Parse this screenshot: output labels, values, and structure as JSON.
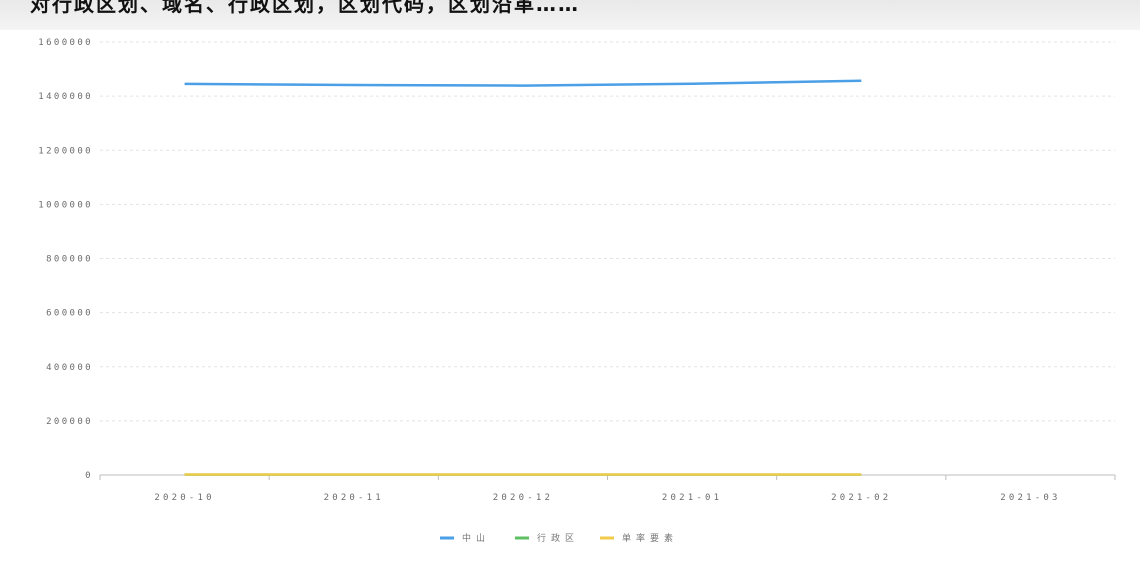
{
  "header": {
    "text": "对行政区划、域名、行政区划，区划代码，区划沿革……"
  },
  "chart_data": {
    "type": "line",
    "categories": [
      "2020-10",
      "2020-11",
      "2020-12",
      "2021-01",
      "2021-02",
      "2021-03"
    ],
    "ylim": [
      0,
      1600000
    ],
    "yticks": [
      0,
      200000,
      400000,
      600000,
      800000,
      1000000,
      1200000,
      1400000,
      1600000
    ],
    "grid": true,
    "legend_position": "bottom-center",
    "series": [
      {
        "name": "中山",
        "color": "#4a9fe6",
        "values": [
          1445000,
          1441000,
          1439000,
          1446000,
          1457000,
          null
        ]
      },
      {
        "name": "行政区",
        "color": "#5ec063",
        "values": [
          1500,
          1500,
          1500,
          1500,
          1500,
          null
        ]
      },
      {
        "name": "单率要素",
        "color": "#f1cb4c",
        "values": [
          2000,
          2000,
          2000,
          2000,
          2000,
          null
        ]
      }
    ]
  }
}
